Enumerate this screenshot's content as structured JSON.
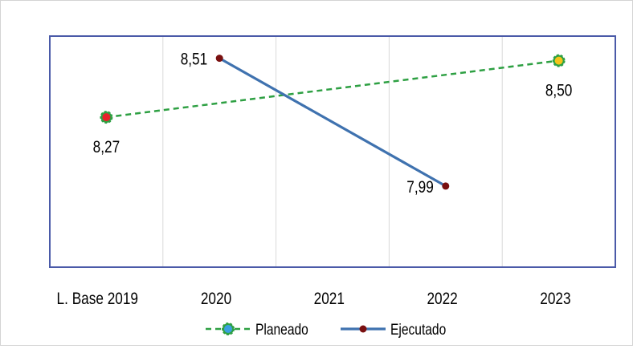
{
  "chart_data": {
    "type": "line",
    "categories": [
      "L. Base 2019",
      "2020",
      "2021",
      "2022",
      "2023"
    ],
    "series": [
      {
        "name": "Planeado",
        "values": [
          8.27,
          null,
          null,
          null,
          8.5
        ],
        "labels": [
          "8,27",
          null,
          null,
          null,
          "8,50"
        ],
        "color": "#2ea043",
        "style": "dashed",
        "marker_colors": [
          "#e8202a",
          null,
          null,
          null,
          "#f6c419"
        ]
      },
      {
        "name": "Ejecutado",
        "values": [
          null,
          8.51,
          null,
          7.99,
          null
        ],
        "labels": [
          null,
          "8,51",
          null,
          "7,99",
          null
        ],
        "color": "#3f72af",
        "marker_color": "#7a1010",
        "style": "solid"
      }
    ],
    "ylim": [
      7.66,
      8.6
    ],
    "grid": "vertical",
    "legend_position": "bottom",
    "plot_border_color": "#4a5aa8"
  }
}
